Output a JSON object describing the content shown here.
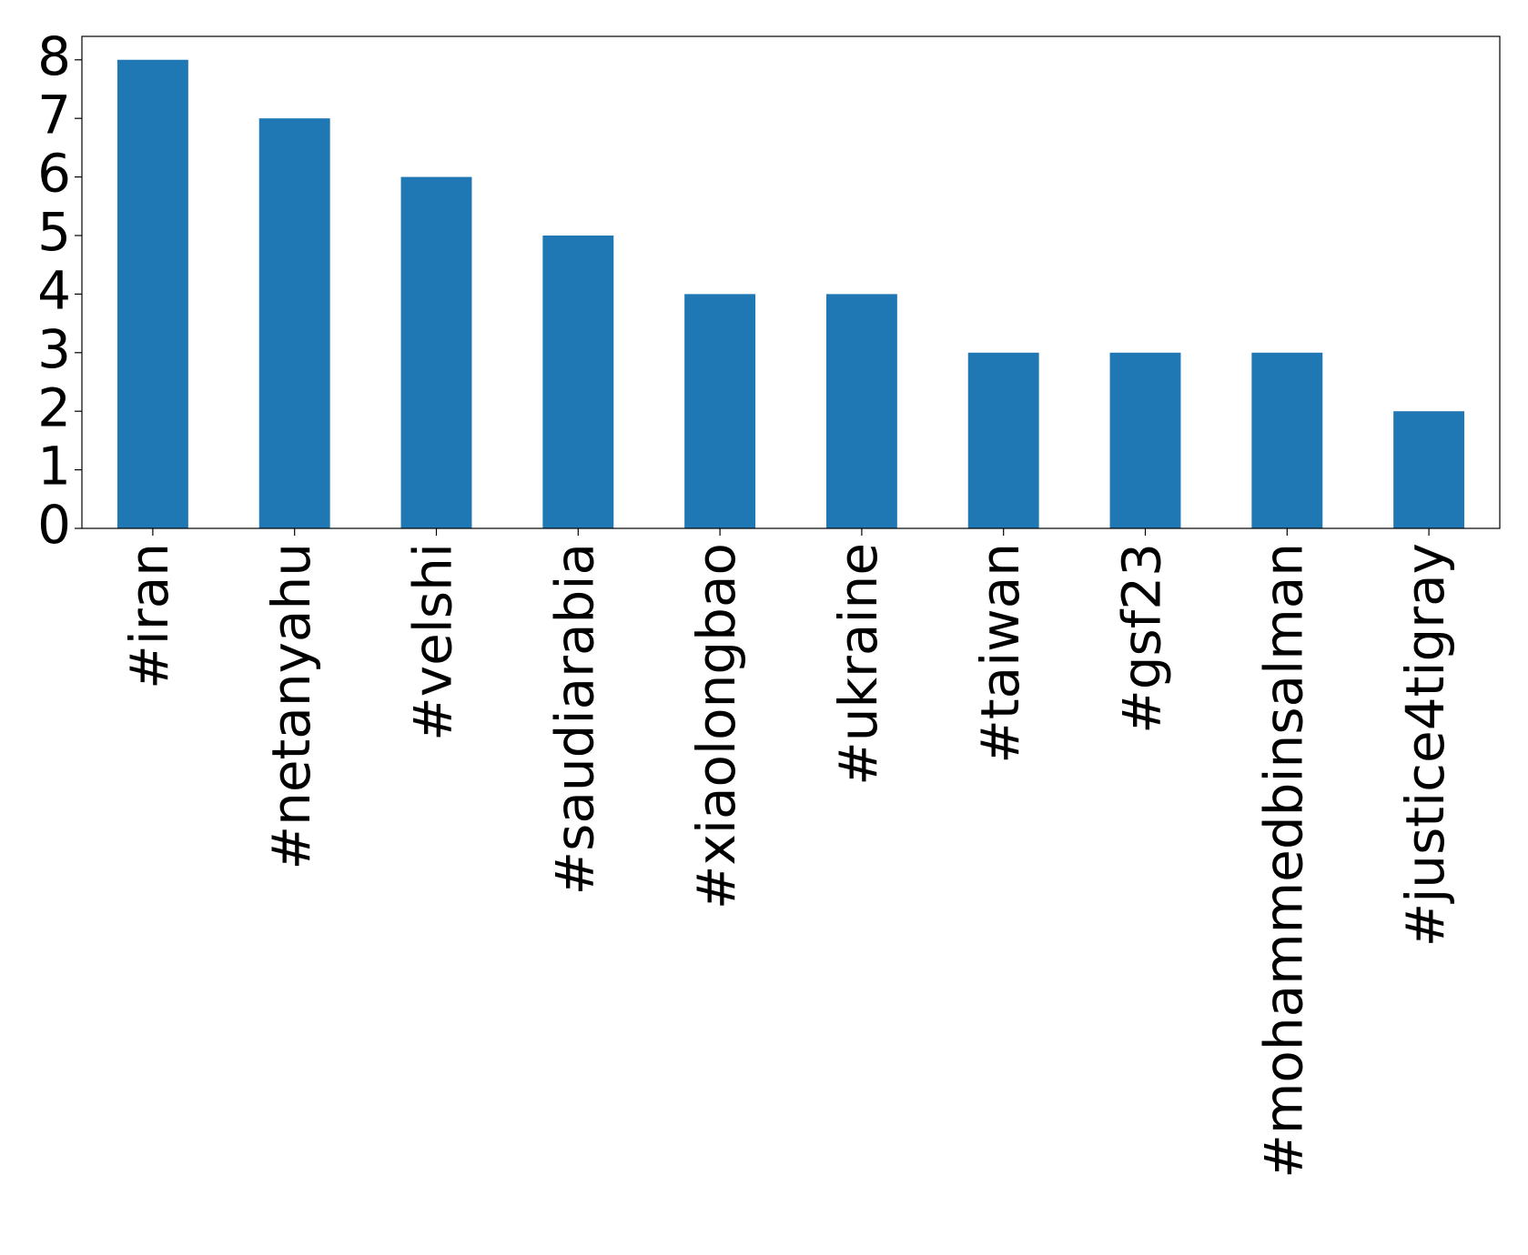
{
  "chart_data": {
    "type": "bar",
    "categories": [
      "#iran",
      "#netanyahu",
      "#velshi",
      "#saudiarabia",
      "#xiaolongbao",
      "#ukraine",
      "#taiwan",
      "#gsf23",
      "#mohammedbinsalman",
      "#justice4tigray"
    ],
    "values": [
      8,
      7,
      6,
      5,
      4,
      4,
      3,
      3,
      3,
      2
    ],
    "color": "#1f77b4",
    "ylim": [
      0,
      8.4
    ],
    "yticks": [
      0,
      1,
      2,
      3,
      4,
      5,
      6,
      7,
      8
    ],
    "grid": false
  }
}
